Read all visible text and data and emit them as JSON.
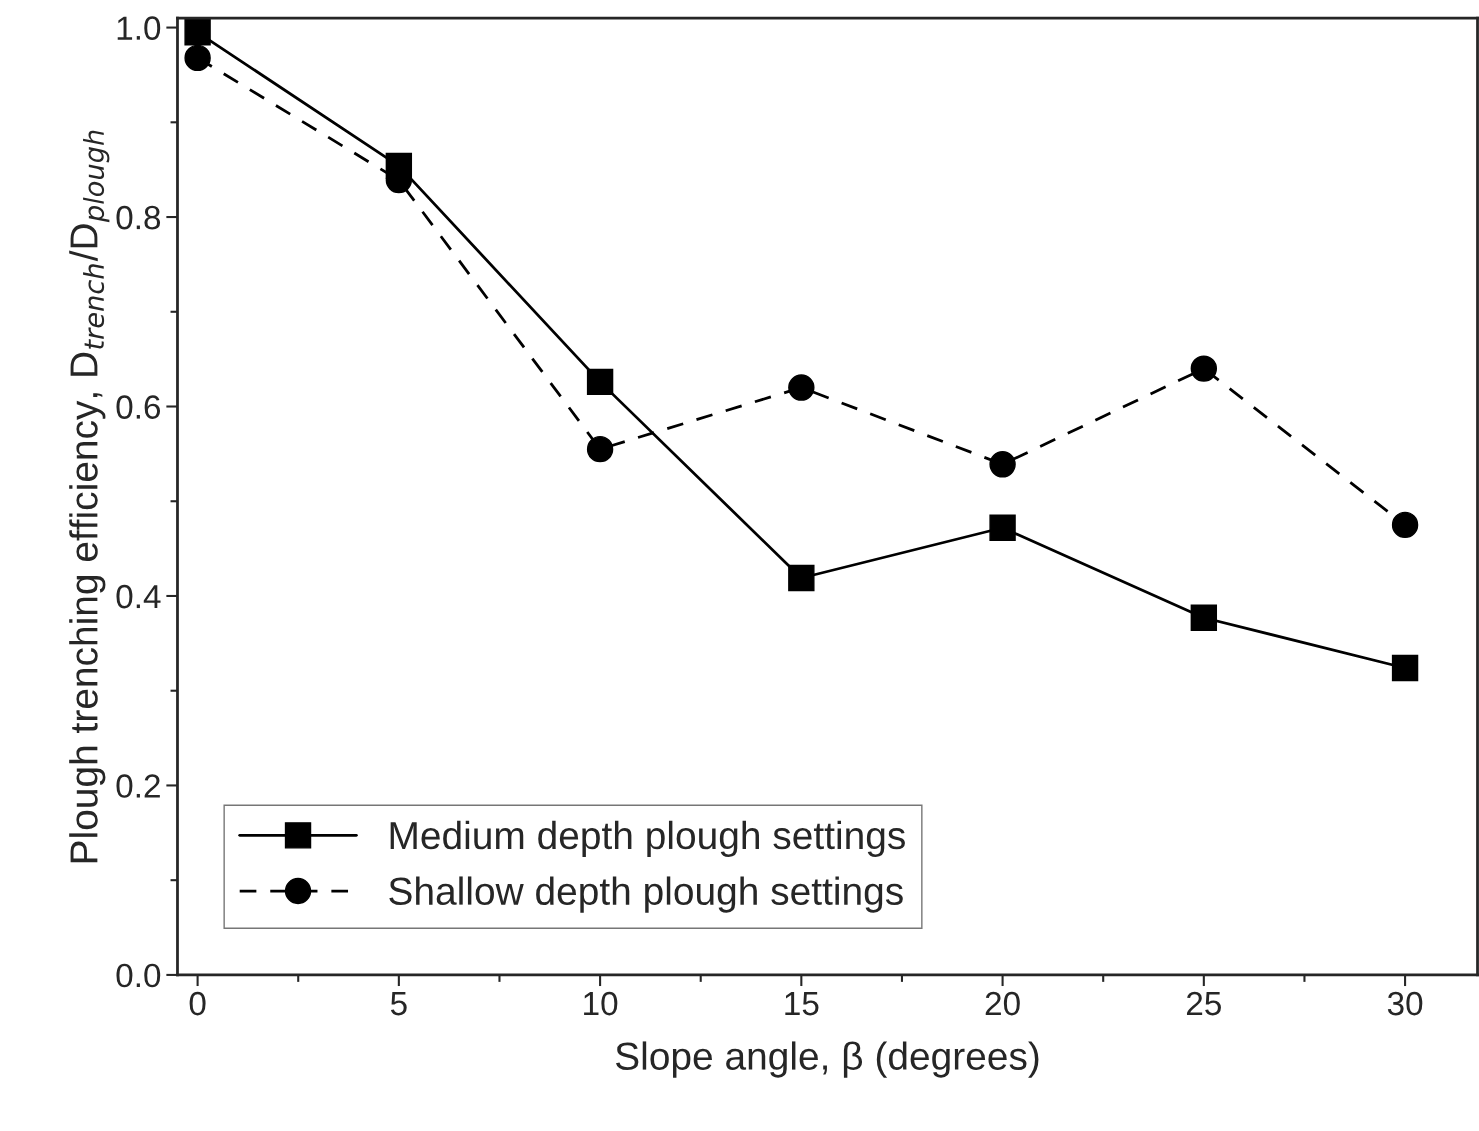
{
  "chart_data": {
    "type": "line",
    "xlabel": "Slope angle, β (degrees)",
    "ylabel": "Plough trenching efficiency, D$_{trench}$/D$_{plough}$",
    "x": [
      0,
      5,
      10,
      15,
      20,
      25,
      30
    ],
    "series": [
      {
        "name": "Medium depth plough settings",
        "color": "#000000",
        "marker": "square",
        "line_style": "solid",
        "values": [
          0.995,
          0.854,
          0.626,
          0.419,
          0.472,
          0.377,
          0.324
        ]
      },
      {
        "name": "Shallow depth plough settings",
        "color": "#000000",
        "marker": "circle",
        "line_style": "dashed",
        "values": [
          0.968,
          0.839,
          0.555,
          0.62,
          0.539,
          0.64,
          0.475
        ]
      }
    ],
    "xlim": [
      -0.5,
      31.8
    ],
    "xticks": [
      0,
      5,
      10,
      15,
      20,
      25,
      30
    ],
    "ylim": [
      0,
      1.01
    ],
    "yticks": [
      {
        "value": 0,
        "label": "0.0"
      },
      0.2,
      0.4,
      0.6,
      0.8,
      {
        "value": 1.0,
        "label": "1.0"
      }
    ],
    "grid": false,
    "legend": "bottom left"
  }
}
